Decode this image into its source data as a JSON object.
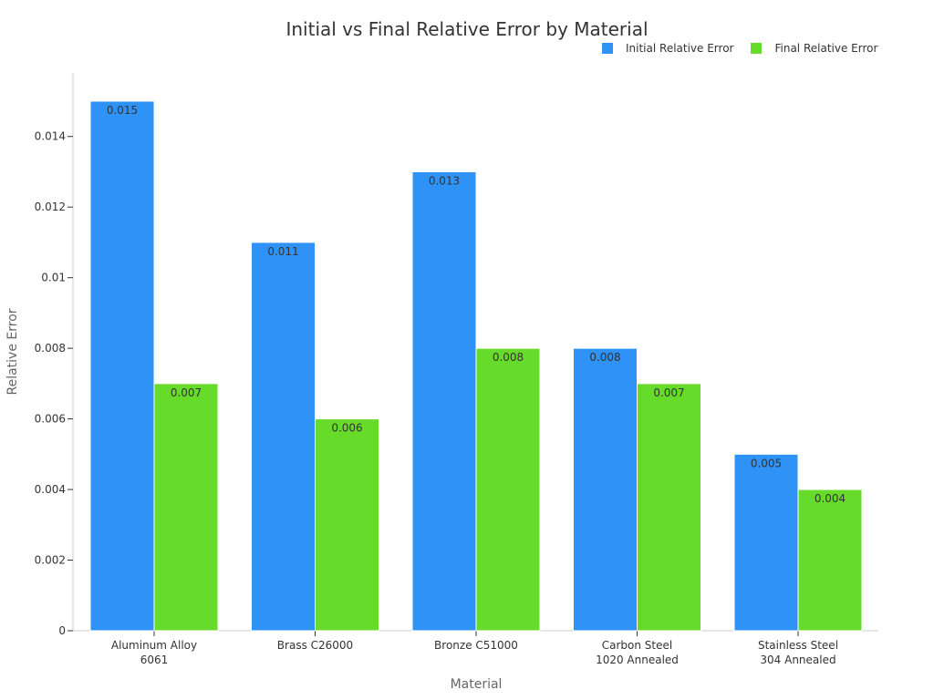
{
  "chart_data": {
    "type": "bar",
    "title": "Initial vs Final Relative Error by Material",
    "xlabel": "Material",
    "ylabel": "Relative Error",
    "categories": [
      [
        "Aluminum Alloy",
        "6061"
      ],
      [
        "Brass C26000"
      ],
      [
        "Bronze C51000"
      ],
      [
        "Carbon Steel",
        "1020 Annealed"
      ],
      [
        "Stainless Steel",
        "304 Annealed"
      ]
    ],
    "series": [
      {
        "name": "Initial Relative Error",
        "color": "#2f92f7",
        "values": [
          0.015,
          0.011,
          0.013,
          0.008,
          0.005
        ],
        "labels": [
          "0.015",
          "0.011",
          "0.013",
          "0.008",
          "0.005"
        ]
      },
      {
        "name": "Final Relative Error",
        "color": "#67db29",
        "values": [
          0.007,
          0.006,
          0.008,
          0.007,
          0.004
        ],
        "labels": [
          "0.007",
          "0.006",
          "0.008",
          "0.007",
          "0.004"
        ]
      }
    ],
    "ylim": [
      0,
      0.0158
    ],
    "yticks": [
      0,
      0.002,
      0.004,
      0.006,
      0.008,
      0.01,
      0.012,
      0.014
    ],
    "ytick_labels": [
      "0",
      "0.002",
      "0.004",
      "0.006",
      "0.008",
      "0.01",
      "0.012",
      "0.014"
    ],
    "legend_position": "top-right",
    "grid": false
  }
}
